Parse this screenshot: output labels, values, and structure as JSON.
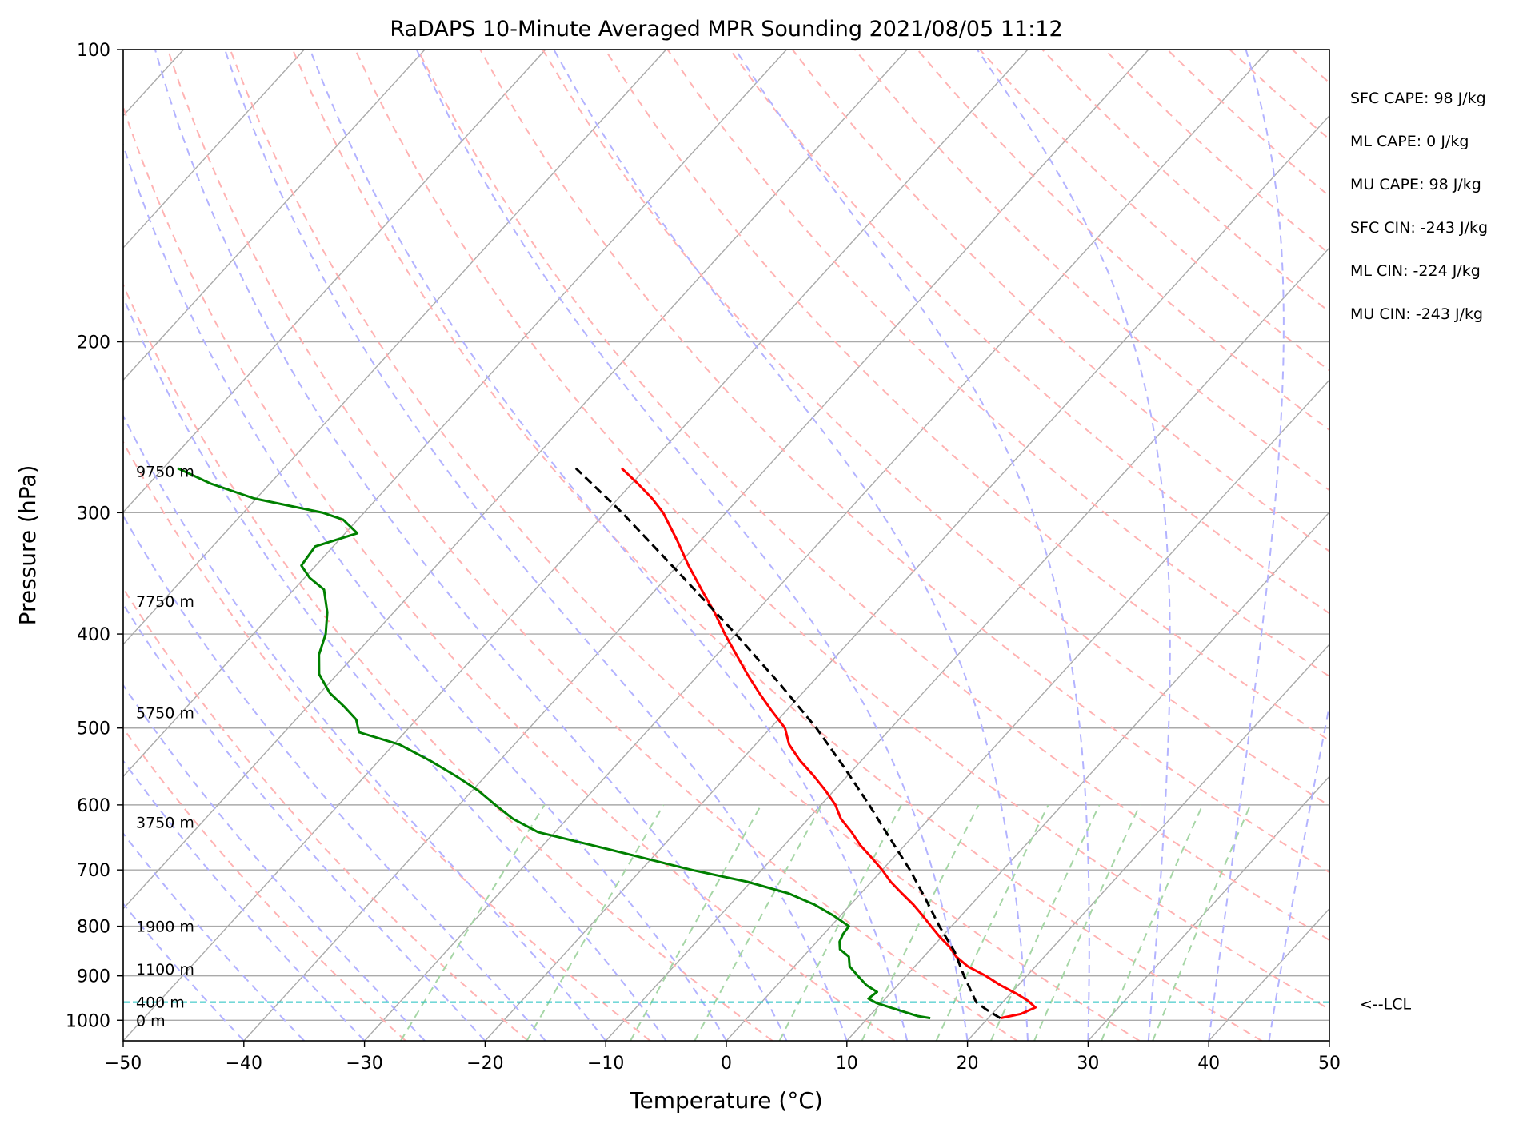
{
  "chart_data": {
    "type": "line",
    "title": "RaDAPS 10-Minute Averaged MPR Sounding 2021/08/05 11:12",
    "xlabel": "Temperature (°C)",
    "ylabel": "Pressure (hPa)",
    "xlim": [
      -50,
      50
    ],
    "ylim": [
      1050,
      100
    ],
    "y_scale": "log",
    "skew": true,
    "grid": true,
    "x_ticks": [
      -50,
      -40,
      -30,
      -20,
      -10,
      0,
      10,
      20,
      30,
      40,
      50
    ],
    "x_tick_labels": [
      "−50",
      "−40",
      "−30",
      "−20",
      "−10",
      "0",
      "10",
      "20",
      "30",
      "40",
      "50"
    ],
    "y_ticks": [
      100,
      200,
      300,
      400,
      500,
      600,
      700,
      800,
      900,
      1000
    ],
    "y_tick_labels": [
      "100",
      "200",
      "300",
      "400",
      "500",
      "600",
      "700",
      "800",
      "900",
      "1000"
    ],
    "series": [
      {
        "kind": "temperature",
        "color": "#ff0000",
        "pressure": [
          995,
          985,
          970,
          955,
          940,
          920,
          900,
          880,
          860,
          840,
          820,
          800,
          780,
          760,
          740,
          720,
          700,
          680,
          660,
          640,
          620,
          600,
          580,
          560,
          540,
          520,
          500,
          480,
          460,
          440,
          420,
          400,
          380,
          360,
          340,
          320,
          300,
          290,
          280,
          270
        ],
        "values": [
          21,
          22.4,
          23.1,
          22.0,
          20.6,
          18.5,
          16.6,
          14.4,
          12.7,
          11.4,
          9.8,
          8.3,
          6.8,
          5.2,
          3.4,
          1.6,
          0.0,
          -1.8,
          -3.7,
          -5.4,
          -7.3,
          -8.8,
          -10.7,
          -12.8,
          -15.1,
          -17.2,
          -18.8,
          -21.2,
          -23.6,
          -26.0,
          -28.4,
          -30.9,
          -33.4,
          -36.2,
          -39.1,
          -42.0,
          -45.2,
          -47.2,
          -49.5,
          -52.0
        ]
      },
      {
        "kind": "dewpoint",
        "color": "#008000",
        "pressure": [
          995,
          990,
          975,
          960,
          950,
          935,
          920,
          900,
          880,
          860,
          845,
          830,
          815,
          800,
          780,
          760,
          740,
          720,
          700,
          680,
          660,
          640,
          620,
          600,
          580,
          560,
          540,
          520,
          505,
          490,
          475,
          460,
          440,
          420,
          400,
          380,
          360,
          350,
          340,
          325,
          315,
          305,
          300,
          290,
          280,
          270
        ],
        "values": [
          15.2,
          14.0,
          11.8,
          9.6,
          8.6,
          8.8,
          7.4,
          6.0,
          4.6,
          3.8,
          2.5,
          1.9,
          1.6,
          1.5,
          -0.6,
          -3.0,
          -6.0,
          -10.3,
          -15.8,
          -20.8,
          -26.0,
          -31.4,
          -34.5,
          -37.0,
          -39.5,
          -42.5,
          -45.8,
          -49.5,
          -53.8,
          -55.0,
          -57.0,
          -59.2,
          -61.5,
          -63.0,
          -64.0,
          -65.5,
          -67.5,
          -69.6,
          -71.2,
          -71.5,
          -69.0,
          -71.2,
          -73.4,
          -80.2,
          -84.9,
          -88.8
        ]
      },
      {
        "kind": "parcel",
        "color": "#000000",
        "pressure": [
          995,
          975,
          958,
          900,
          850,
          800,
          750,
          700,
          650,
          600,
          550,
          500,
          450,
          400,
          350,
          300,
          270
        ],
        "values": [
          21.0,
          19.2,
          17.8,
          14.8,
          12.2,
          9.0,
          5.8,
          2.3,
          -1.7,
          -6.0,
          -10.8,
          -16.2,
          -22.6,
          -30.0,
          -38.6,
          -48.6,
          -55.8
        ]
      }
    ],
    "lcl_pressure": 958,
    "lcl_label": "<--LCL",
    "height_labels": [
      {
        "text": "0 m",
        "pressure": 1000
      },
      {
        "text": "400 m",
        "pressure": 958
      },
      {
        "text": "1100 m",
        "pressure": 885
      },
      {
        "text": "1900 m",
        "pressure": 800
      },
      {
        "text": "3750 m",
        "pressure": 625
      },
      {
        "text": "5750 m",
        "pressure": 482
      },
      {
        "text": "7750 m",
        "pressure": 370
      },
      {
        "text": "9750 m",
        "pressure": 272
      }
    ],
    "indices": [
      "SFC CAPE: 98 J/kg",
      "ML CAPE: 0 J/kg",
      "MU CAPE: 98 J/kg",
      "SFC CIN: -243 J/kg",
      "ML CIN: -224 J/kg",
      "MU CIN: -243 J/kg"
    ],
    "line_colors": {
      "isotherm": "#aaaaaa",
      "grid": "#aaaaaa",
      "dry_adiabat": "#ffb3b3",
      "moist_adiabat": "#b3b3ff",
      "mixing_ratio": "#a6d6a6",
      "lcl": "#20c0c0"
    }
  }
}
